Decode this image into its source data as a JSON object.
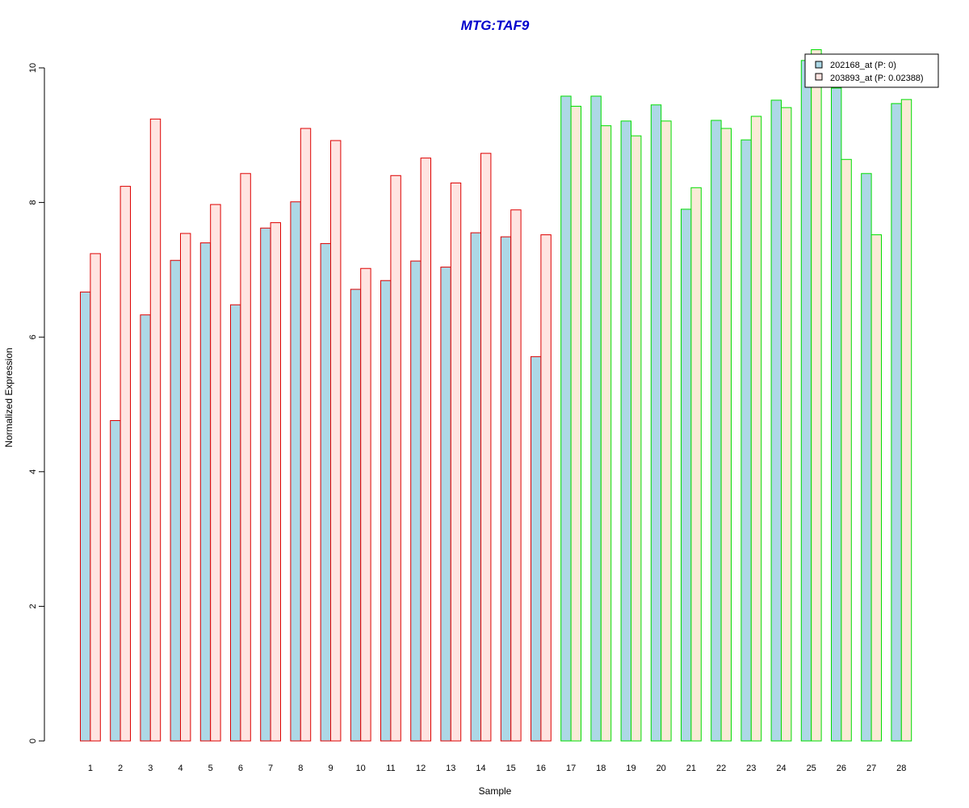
{
  "chart_data": {
    "type": "bar",
    "title": "MTG:TAF9",
    "xlabel": "Sample",
    "ylabel": "Normalized Expression",
    "ylim": [
      0,
      10
    ],
    "yticks": [
      "0",
      "2",
      "4",
      "6",
      "8",
      "10"
    ],
    "categories": [
      "1",
      "2",
      "3",
      "4",
      "5",
      "6",
      "7",
      "8",
      "9",
      "10",
      "11",
      "12",
      "13",
      "14",
      "15",
      "16",
      "17",
      "18",
      "19",
      "20",
      "21",
      "22",
      "23",
      "24",
      "25",
      "26",
      "27",
      "28"
    ],
    "series": [
      {
        "name": "202168_at (P: 0)",
        "fill": "#add8e6",
        "values": [
          6.67,
          4.76,
          6.33,
          7.14,
          7.4,
          6.48,
          7.62,
          8.01,
          7.39,
          6.71,
          6.84,
          7.13,
          7.04,
          7.55,
          7.49,
          5.71,
          9.58,
          9.58,
          9.21,
          9.45,
          7.9,
          9.22,
          8.93,
          9.52,
          10.11,
          9.7,
          8.43,
          9.47
        ]
      },
      {
        "name": "203893_at (P: 0.02388)",
        "fill_group1": "#ffe4e1",
        "fill_group2": "#faebd7",
        "values": [
          7.24,
          8.24,
          9.24,
          7.54,
          7.97,
          8.43,
          7.7,
          9.1,
          8.92,
          7.02,
          8.4,
          8.66,
          8.29,
          8.73,
          7.89,
          7.52,
          9.43,
          9.14,
          8.99,
          9.21,
          8.22,
          9.1,
          9.28,
          9.41,
          10.27,
          8.64,
          7.52,
          9.53
        ]
      }
    ],
    "groups": [
      {
        "samples": "1-16",
        "border": "#dd0000"
      },
      {
        "samples": "17-28",
        "border": "#00dd00"
      }
    ],
    "group_split_index": 16,
    "legend": {
      "placement": "top-right"
    },
    "grid": false
  }
}
